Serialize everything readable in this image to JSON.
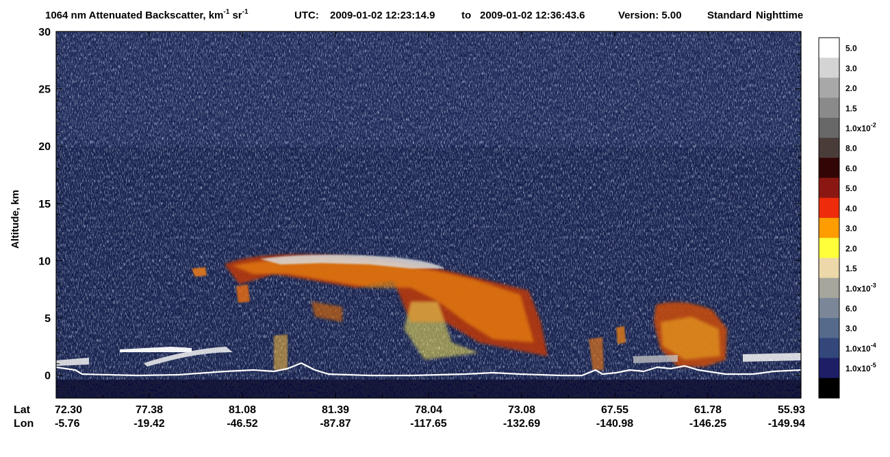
{
  "chart_data": {
    "type": "heatmap",
    "title": {
      "quantity_prefix": "1064 nm Attenuated Backscatter, km",
      "unit_exp1": "-1",
      "unit_mid": " sr",
      "unit_exp2": "-1",
      "utc_label": "UTC:",
      "start_time": "2009-01-02 12:23:14.9",
      "to_word": "to",
      "end_time": "2009-01-02 12:36:43.6",
      "version": "Version: 5.00",
      "product": "Standard",
      "mode": "Nighttime"
    },
    "ylabel": "Altitude, km",
    "ylim": [
      -2,
      30
    ],
    "y_ticks": [
      "0",
      "5",
      "10",
      "15",
      "20",
      "25",
      "30"
    ],
    "y_tick_values": [
      0,
      5,
      10,
      15,
      20,
      25,
      30
    ],
    "x_row_labels": [
      "Lat",
      "Lon"
    ],
    "x_ticks": [
      {
        "lat": "72.30",
        "lon": "-5.76"
      },
      {
        "lat": "77.38",
        "lon": "-19.42"
      },
      {
        "lat": "81.08",
        "lon": "-46.52"
      },
      {
        "lat": "81.39",
        "lon": "-87.87"
      },
      {
        "lat": "78.04",
        "lon": "-117.65"
      },
      {
        "lat": "73.08",
        "lon": "-132.69"
      },
      {
        "lat": "67.55",
        "lon": "-140.98"
      },
      {
        "lat": "61.78",
        "lon": "-146.25"
      },
      {
        "lat": "55.93",
        "lon": "-149.94"
      }
    ],
    "colorbar": [
      {
        "color": "#ffffff",
        "label": "5.0",
        "exp": ""
      },
      {
        "color": "#d4d4d4",
        "label": "3.0",
        "exp": ""
      },
      {
        "color": "#a8a8a8",
        "label": "2.0",
        "exp": ""
      },
      {
        "color": "#8a8a8a",
        "label": "1.5",
        "exp": ""
      },
      {
        "color": "#686868",
        "label": "1.0x10",
        "exp": "-2"
      },
      {
        "color": "#4a3d39",
        "label": "8.0",
        "exp": ""
      },
      {
        "color": "#330606",
        "label": "6.0",
        "exp": ""
      },
      {
        "color": "#8b1712",
        "label": "5.0",
        "exp": ""
      },
      {
        "color": "#ee2c0c",
        "label": "4.0",
        "exp": ""
      },
      {
        "color": "#ff9c00",
        "label": "3.0",
        "exp": ""
      },
      {
        "color": "#ffff3a",
        "label": "2.0",
        "exp": ""
      },
      {
        "color": "#ecd8a8",
        "label": "1.5",
        "exp": ""
      },
      {
        "color": "#a6a69c",
        "label": "1.0x10",
        "exp": "-3"
      },
      {
        "color": "#7b8798",
        "label": "6.0",
        "exp": ""
      },
      {
        "color": "#566a8c",
        "label": "3.0",
        "exp": ""
      },
      {
        "color": "#33477b",
        "label": "1.0x10",
        "exp": "-4"
      },
      {
        "color": "#1d1e66",
        "label": "1.0x10",
        "exp": "-5"
      },
      {
        "color": "#000000",
        "label": "",
        "exp": ""
      }
    ]
  }
}
